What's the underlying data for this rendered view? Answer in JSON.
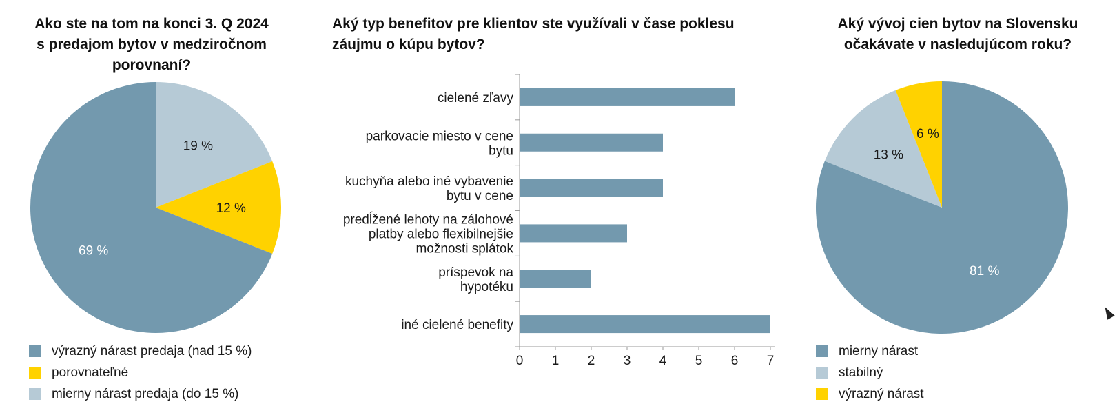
{
  "chart_data": [
    {
      "type": "pie",
      "title": "Ako ste na tom na konci 3. Q 2024 s predajom bytov v medziročnom porovnaní?",
      "title_lines": [
        "Ako ste na tom na konci 3. Q 2024",
        "s predajom bytov v medziročnom",
        "porovnaní?"
      ],
      "slices": [
        {
          "label": "mierny nárast predaja (do 15 %)",
          "value": 19,
          "display": "19 %",
          "color": "#b6cad6"
        },
        {
          "label": "porovnateľné",
          "value": 12,
          "display": "12 %",
          "color": "#ffd200"
        },
        {
          "label": "výrazný nárast predaja (nad 15 %)",
          "value": 69,
          "display": "69 %",
          "color": "#7399ae"
        }
      ],
      "legend": [
        "výrazný nárast predaja (nad 15 %)",
        "porovnateľné",
        "mierny nárast predaja (do 15 %)"
      ],
      "legend_colors": [
        "#7399ae",
        "#ffd200",
        "#b6cad6"
      ],
      "legend_position": "bottom-left"
    },
    {
      "type": "bar",
      "orientation": "horizontal",
      "title": "Aký typ benefitov pre klientov ste využívali v čase poklesu záujmu o kúpu bytov?",
      "title_lines": [
        "Aký typ benefitov pre klientov ste využívali v čase poklesu",
        "záujmu o kúpu bytov?"
      ],
      "categories": [
        [
          "cielené zľavy"
        ],
        [
          "parkovacie miesto v cene",
          "bytu"
        ],
        [
          "kuchyňa alebo iné vybavenie",
          "bytu v cene"
        ],
        [
          "predĺžené lehoty na zálohové",
          "platby alebo flexibilnejšie",
          "možnosti splátok"
        ],
        [
          "príspevok na",
          "hypotéku"
        ],
        [
          "iné cielené benefity"
        ]
      ],
      "values": [
        6,
        4,
        4,
        3,
        2,
        7
      ],
      "xlim": [
        0,
        7
      ],
      "xticks": [
        "0",
        "1",
        "2",
        "3",
        "4",
        "5",
        "6",
        "7"
      ],
      "bar_color": "#7399ae",
      "xlabel": "",
      "ylabel": ""
    },
    {
      "type": "pie",
      "title": "Aký vývoj cien bytov na Slovensku očakávate v nasledujúcom roku?",
      "title_lines": [
        "Aký vývoj cien bytov na Slovensku",
        "očakávate v nasledujúcom roku?"
      ],
      "slices": [
        {
          "label": "mierny nárast",
          "value": 81,
          "display": "81 %",
          "color": "#7399ae"
        },
        {
          "label": "stabilný",
          "value": 13,
          "display": "13 %",
          "color": "#b6cad6"
        },
        {
          "label": "výrazný nárast",
          "value": 6,
          "display": "6 %",
          "color": "#ffd200"
        }
      ],
      "legend": [
        "mierny nárast",
        "stabilný",
        "výrazný nárast"
      ],
      "legend_colors": [
        "#7399ae",
        "#b6cad6",
        "#ffd200"
      ],
      "legend_position": "bottom-left"
    }
  ]
}
